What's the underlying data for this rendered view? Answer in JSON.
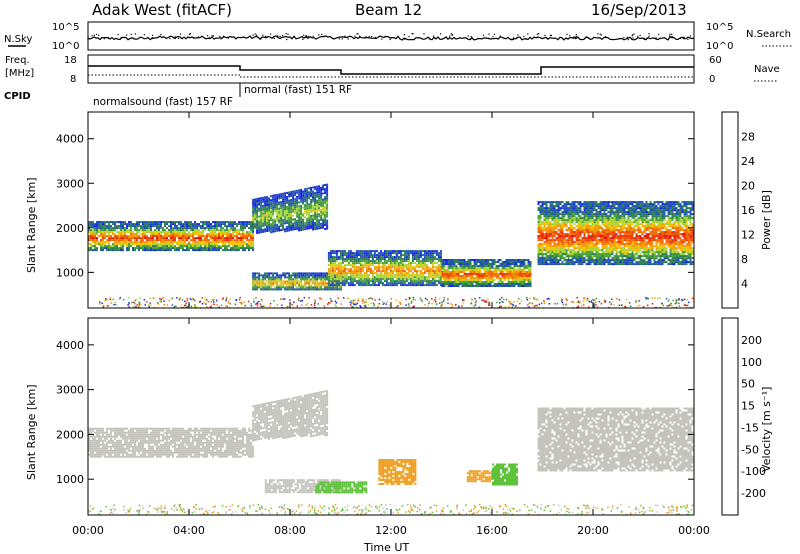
{
  "header": {
    "station": "Adak West (fitACF)",
    "beam": "Beam 12",
    "date": "16/Sep/2013"
  },
  "panel_nsky": {
    "left_label": "N.Sky",
    "left_ticks": [
      "10^5",
      "10^0"
    ],
    "right_ticks": [
      "10^5",
      "10^0"
    ],
    "right_label": "N.Search"
  },
  "panel_freq": {
    "left_label_1": "Freq.",
    "left_label_2": "[MHz]",
    "left_ticks": [
      "18",
      "8"
    ],
    "right_ticks": [
      "60",
      "0"
    ],
    "right_label": "Nave",
    "cpid_label": "CPID",
    "modes": [
      "normalsound (fast) 157 RF",
      "normal (fast) 151 RF"
    ]
  },
  "chart_data": [
    {
      "type": "heatmap",
      "name": "power",
      "ylabel": "Slant Range [km]",
      "yticks": [
        "1000",
        "2000",
        "3000",
        "4000"
      ],
      "ylim": [
        200,
        4600
      ],
      "xlim": [
        0,
        24
      ],
      "colorbar": {
        "label": "Power [dB]",
        "ticks": [
          "4",
          "8",
          "12",
          "16",
          "20",
          "24",
          "28"
        ],
        "colors": [
          "#1a24e0",
          "#1f52b8",
          "#2e7d56",
          "#4aa13c",
          "#a8d43a",
          "#f5c20a",
          "#f29b0a",
          "#f06a0a",
          "#e83a0a",
          "#e01010"
        ]
      },
      "bands": [
        {
          "t0": 0.0,
          "t1": 6.5,
          "r0": 1500,
          "r1": 2150,
          "peak": 27
        },
        {
          "t0": 6.5,
          "t1": 9.5,
          "r0": 2000,
          "r1": 3000,
          "peak": 14
        },
        {
          "t0": 6.5,
          "t1": 10.0,
          "r0": 600,
          "r1": 1000,
          "peak": 20
        },
        {
          "t0": 9.5,
          "t1": 14.0,
          "r0": 700,
          "r1": 1500,
          "peak": 22
        },
        {
          "t0": 14.0,
          "t1": 17.5,
          "r0": 700,
          "r1": 1300,
          "peak": 26
        },
        {
          "t0": 17.8,
          "t1": 24.0,
          "r0": 1200,
          "r1": 2600,
          "peak": 28
        }
      ]
    },
    {
      "type": "heatmap",
      "name": "velocity",
      "ylabel": "Slant Range [km]",
      "yticks": [
        "1000",
        "2000",
        "3000",
        "4000"
      ],
      "ylim": [
        200,
        4600
      ],
      "xlim": [
        0,
        24
      ],
      "xticks": [
        "00:00",
        "04:00",
        "08:00",
        "12:00",
        "16:00",
        "20:00",
        "00:00"
      ],
      "xlabel": "Time UT",
      "colorbar": {
        "label": "Velocity [m s⁻¹]",
        "ticks": [
          "200",
          "100",
          "50",
          "15",
          "-15",
          "-50",
          "-100",
          "-200"
        ],
        "colors": [
          "#1a24c8",
          "#2a4fb0",
          "#3a8a5a",
          "#5ec23a",
          "#9ad86a",
          "#c8c8c0",
          "#c8c8c0",
          "#f0b020",
          "#f08a10",
          "#f05a10",
          "#e02a10",
          "#e01010"
        ]
      },
      "bands": [
        {
          "t0": 0.0,
          "t1": 6.5,
          "r0": 1500,
          "r1": 2150,
          "v": 0
        },
        {
          "t0": 6.5,
          "t1": 9.5,
          "r0": 2000,
          "r1": 3000,
          "v": 0
        },
        {
          "t0": 7.0,
          "t1": 10.0,
          "r0": 700,
          "r1": 1000,
          "v": 0
        },
        {
          "t0": 9.0,
          "t1": 11.0,
          "r0": 700,
          "r1": 950,
          "v": 40
        },
        {
          "t0": 11.5,
          "t1": 13.0,
          "r0": 900,
          "r1": 1450,
          "v": -40
        },
        {
          "t0": 15.0,
          "t1": 16.0,
          "r0": 950,
          "r1": 1200,
          "v": -40
        },
        {
          "t0": 16.0,
          "t1": 17.0,
          "r0": 900,
          "r1": 1350,
          "v": 40
        },
        {
          "t0": 17.8,
          "t1": 24.0,
          "r0": 1200,
          "r1": 2600,
          "v": 0
        }
      ]
    }
  ]
}
